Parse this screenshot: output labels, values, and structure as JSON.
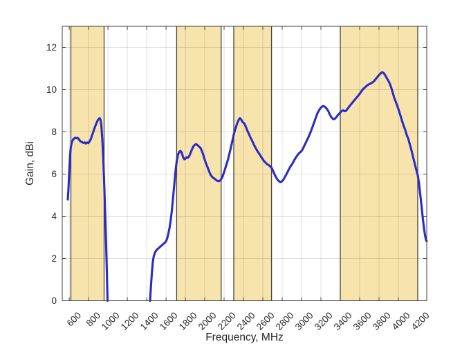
{
  "chart_data": {
    "type": "line",
    "xlabel": "Frequency, MHz",
    "ylabel": "Gain, dBi",
    "xlim": [
      528,
      4293
    ],
    "ylim": [
      0,
      13
    ],
    "x_ticks": [
      600,
      800,
      1000,
      1200,
      1400,
      1600,
      1800,
      2000,
      2200,
      2400,
      2600,
      2800,
      3000,
      3200,
      3400,
      3600,
      3800,
      4000,
      4200
    ],
    "y_ticks": [
      0,
      2,
      4,
      6,
      8,
      10,
      12
    ],
    "grid": true,
    "legend": "none",
    "x_tick_rotation_deg": 45,
    "shaded_bands": [
      [
        617,
        960
      ],
      [
        1710,
        2170
      ],
      [
        2300,
        2690
      ],
      [
        3400,
        4200
      ]
    ],
    "colors": {
      "band_fill": "#F7E3AC",
      "band_edge": "#45453B",
      "grid": "rgba(21,21,21,0.13)",
      "axis": "#424242",
      "line": "#2B2BC7",
      "tick_label": "#262626"
    },
    "series": [
      {
        "name": "gain",
        "segments": [
          [
            [
              585,
              4.8
            ],
            [
              592,
              5.3
            ],
            [
              600,
              6.1
            ],
            [
              608,
              6.8
            ],
            [
              616,
              7.25
            ],
            [
              624,
              7.45
            ],
            [
              635,
              7.6
            ],
            [
              648,
              7.68
            ],
            [
              660,
              7.72
            ],
            [
              672,
              7.7
            ],
            [
              685,
              7.72
            ],
            [
              700,
              7.65
            ],
            [
              715,
              7.55
            ],
            [
              730,
              7.52
            ],
            [
              745,
              7.48
            ],
            [
              760,
              7.5
            ],
            [
              772,
              7.45
            ],
            [
              785,
              7.5
            ],
            [
              798,
              7.47
            ],
            [
              810,
              7.55
            ],
            [
              822,
              7.65
            ],
            [
              835,
              7.82
            ],
            [
              850,
              8.02
            ],
            [
              865,
              8.22
            ],
            [
              880,
              8.4
            ],
            [
              895,
              8.55
            ],
            [
              908,
              8.63
            ],
            [
              917,
              8.65
            ],
            [
              926,
              8.52
            ],
            [
              934,
              8.2
            ],
            [
              942,
              7.65
            ],
            [
              950,
              6.9
            ],
            [
              958,
              6.0
            ],
            [
              966,
              4.95
            ],
            [
              974,
              3.8
            ],
            [
              981,
              2.7
            ],
            [
              988,
              1.5
            ],
            [
              993,
              0.5
            ],
            [
              996,
              0
            ]
          ],
          [
            [
              1435,
              0
            ],
            [
              1441,
              0.45
            ],
            [
              1448,
              0.95
            ],
            [
              1456,
              1.45
            ],
            [
              1464,
              1.85
            ],
            [
              1473,
              2.1
            ],
            [
              1487,
              2.3
            ],
            [
              1505,
              2.42
            ],
            [
              1525,
              2.5
            ],
            [
              1550,
              2.6
            ],
            [
              1575,
              2.7
            ],
            [
              1598,
              2.8
            ],
            [
              1612,
              2.95
            ],
            [
              1625,
              3.2
            ],
            [
              1638,
              3.5
            ],
            [
              1650,
              3.9
            ],
            [
              1661,
              4.3
            ],
            [
              1671,
              4.8
            ],
            [
              1681,
              5.3
            ],
            [
              1692,
              5.85
            ],
            [
              1703,
              6.35
            ],
            [
              1713,
              6.7
            ],
            [
              1724,
              6.92
            ],
            [
              1737,
              7.05
            ],
            [
              1750,
              7.1
            ],
            [
              1763,
              7.0
            ],
            [
              1776,
              6.8
            ],
            [
              1789,
              6.7
            ],
            [
              1801,
              6.73
            ],
            [
              1813,
              6.8
            ],
            [
              1826,
              6.77
            ],
            [
              1839,
              6.85
            ],
            [
              1853,
              7.0
            ],
            [
              1866,
              7.15
            ],
            [
              1881,
              7.3
            ],
            [
              1896,
              7.38
            ],
            [
              1911,
              7.42
            ],
            [
              1926,
              7.37
            ],
            [
              1941,
              7.3
            ],
            [
              1956,
              7.24
            ],
            [
              1970,
              7.1
            ],
            [
              1983,
              6.93
            ],
            [
              1997,
              6.72
            ],
            [
              2012,
              6.52
            ],
            [
              2027,
              6.35
            ],
            [
              2043,
              6.15
            ],
            [
              2062,
              5.95
            ],
            [
              2082,
              5.84
            ],
            [
              2102,
              5.78
            ],
            [
              2122,
              5.7
            ],
            [
              2142,
              5.66
            ],
            [
              2162,
              5.7
            ],
            [
              2182,
              5.86
            ],
            [
              2202,
              6.12
            ],
            [
              2222,
              6.42
            ],
            [
              2242,
              6.72
            ],
            [
              2262,
              7.1
            ],
            [
              2282,
              7.5
            ],
            [
              2300,
              7.88
            ],
            [
              2318,
              8.18
            ],
            [
              2336,
              8.42
            ],
            [
              2352,
              8.58
            ],
            [
              2364,
              8.65
            ],
            [
              2378,
              8.57
            ],
            [
              2392,
              8.46
            ],
            [
              2408,
              8.4
            ],
            [
              2424,
              8.25
            ],
            [
              2440,
              8.06
            ],
            [
              2456,
              7.9
            ],
            [
              2472,
              7.73
            ],
            [
              2487,
              7.6
            ],
            [
              2503,
              7.45
            ],
            [
              2518,
              7.3
            ],
            [
              2534,
              7.17
            ],
            [
              2549,
              7.05
            ],
            [
              2565,
              6.95
            ],
            [
              2580,
              6.84
            ],
            [
              2596,
              6.72
            ],
            [
              2611,
              6.62
            ],
            [
              2626,
              6.55
            ],
            [
              2642,
              6.48
            ],
            [
              2658,
              6.43
            ],
            [
              2674,
              6.38
            ],
            [
              2690,
              6.3
            ],
            [
              2706,
              6.14
            ],
            [
              2722,
              5.98
            ],
            [
              2738,
              5.84
            ],
            [
              2754,
              5.72
            ],
            [
              2768,
              5.66
            ],
            [
              2782,
              5.62
            ],
            [
              2796,
              5.65
            ],
            [
              2812,
              5.73
            ],
            [
              2830,
              5.88
            ],
            [
              2848,
              6.03
            ],
            [
              2866,
              6.2
            ],
            [
              2884,
              6.35
            ],
            [
              2902,
              6.47
            ],
            [
              2920,
              6.62
            ],
            [
              2938,
              6.76
            ],
            [
              2955,
              6.88
            ],
            [
              2972,
              6.98
            ],
            [
              2988,
              7.04
            ],
            [
              3005,
              7.12
            ],
            [
              3022,
              7.28
            ],
            [
              3040,
              7.45
            ],
            [
              3058,
              7.62
            ],
            [
              3076,
              7.8
            ],
            [
              3094,
              8.0
            ],
            [
              3112,
              8.22
            ],
            [
              3130,
              8.45
            ],
            [
              3148,
              8.68
            ],
            [
              3166,
              8.9
            ],
            [
              3184,
              9.05
            ],
            [
              3202,
              9.16
            ],
            [
              3220,
              9.22
            ],
            [
              3238,
              9.2
            ],
            [
              3256,
              9.12
            ],
            [
              3274,
              9.0
            ],
            [
              3292,
              8.82
            ],
            [
              3310,
              8.68
            ],
            [
              3328,
              8.6
            ],
            [
              3344,
              8.62
            ],
            [
              3360,
              8.7
            ],
            [
              3376,
              8.8
            ],
            [
              3392,
              8.88
            ],
            [
              3410,
              8.97
            ],
            [
              3428,
              9.02
            ],
            [
              3444,
              8.98
            ],
            [
              3460,
              9.0
            ],
            [
              3476,
              9.1
            ],
            [
              3492,
              9.2
            ],
            [
              3510,
              9.3
            ],
            [
              3528,
              9.4
            ],
            [
              3546,
              9.5
            ],
            [
              3564,
              9.6
            ],
            [
              3582,
              9.7
            ],
            [
              3600,
              9.8
            ],
            [
              3618,
              9.92
            ],
            [
              3636,
              10.03
            ],
            [
              3654,
              10.1
            ],
            [
              3672,
              10.18
            ],
            [
              3690,
              10.24
            ],
            [
              3708,
              10.28
            ],
            [
              3726,
              10.32
            ],
            [
              3744,
              10.38
            ],
            [
              3762,
              10.48
            ],
            [
              3780,
              10.58
            ],
            [
              3798,
              10.68
            ],
            [
              3814,
              10.76
            ],
            [
              3830,
              10.82
            ],
            [
              3846,
              10.8
            ],
            [
              3862,
              10.7
            ],
            [
              3878,
              10.56
            ],
            [
              3894,
              10.44
            ],
            [
              3910,
              10.3
            ],
            [
              3926,
              10.1
            ],
            [
              3942,
              9.85
            ],
            [
              3958,
              9.6
            ],
            [
              3974,
              9.42
            ],
            [
              3990,
              9.22
            ],
            [
              4006,
              9.0
            ],
            [
              4022,
              8.76
            ],
            [
              4038,
              8.52
            ],
            [
              4054,
              8.3
            ],
            [
              4070,
              8.1
            ],
            [
              4086,
              7.86
            ],
            [
              4102,
              7.68
            ],
            [
              4118,
              7.42
            ],
            [
              4134,
              7.15
            ],
            [
              4150,
              6.85
            ],
            [
              4166,
              6.55
            ],
            [
              4182,
              6.25
            ],
            [
              4200,
              5.95
            ],
            [
              4212,
              5.6
            ],
            [
              4226,
              5.05
            ],
            [
              4240,
              4.45
            ],
            [
              4254,
              3.85
            ],
            [
              4266,
              3.4
            ],
            [
              4276,
              3.08
            ],
            [
              4285,
              2.9
            ],
            [
              4292,
              2.82
            ]
          ]
        ]
      }
    ]
  }
}
